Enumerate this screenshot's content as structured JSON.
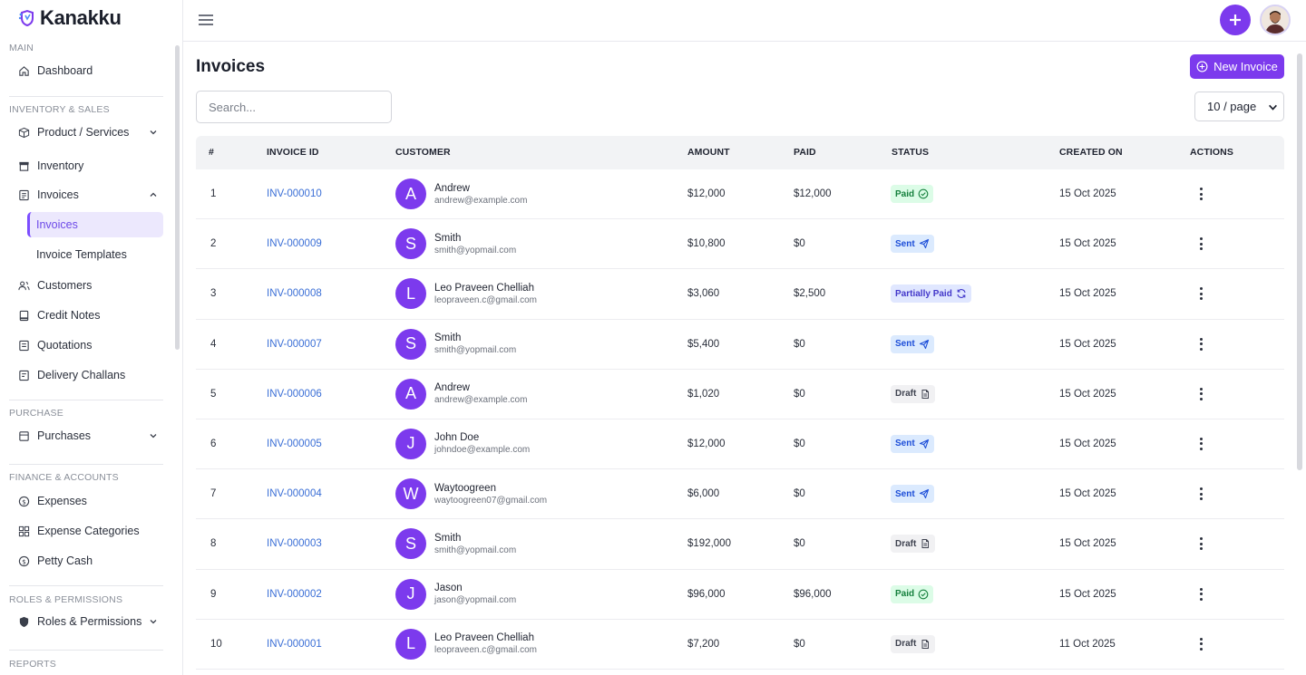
{
  "app": {
    "name": "Kanakku"
  },
  "sidebar": {
    "sections": {
      "main": "MAIN",
      "inventory_sales": "INVENTORY & SALES",
      "purchase": "PURCHASE",
      "finance": "FINANCE & ACCOUNTS",
      "roles": "ROLES & PERMISSIONS",
      "reports": "REPORTS"
    },
    "items": {
      "dashboard": "Dashboard",
      "products": "Product / Services",
      "inventory": "Inventory",
      "invoices": "Invoices",
      "invoices_sub": "Invoices",
      "invoice_templates": "Invoice Templates",
      "customers": "Customers",
      "credit_notes": "Credit Notes",
      "quotations": "Quotations",
      "delivery_challans": "Delivery Challans",
      "purchases": "Purchases",
      "expenses": "Expenses",
      "expense_categories": "Expense Categories",
      "petty_cash": "Petty Cash",
      "roles_permissions": "Roles & Permissions"
    }
  },
  "page": {
    "title": "Invoices",
    "new_button": "New Invoice",
    "search_placeholder": "Search...",
    "per_page": "10 / page"
  },
  "table": {
    "headers": {
      "num": "#",
      "invoice_id": "INVOICE ID",
      "customer": "CUSTOMER",
      "amount": "AMOUNT",
      "paid": "PAID",
      "status": "STATUS",
      "created_on": "CREATED ON",
      "actions": "ACTIONS"
    },
    "rows": [
      {
        "num": "1",
        "id": "INV-000010",
        "initial": "A",
        "name": "Andrew",
        "email": "andrew@example.com",
        "amount": "$12,000",
        "paid": "$12,000",
        "status": "Paid",
        "status_kind": "paid",
        "created": "15 Oct 2025"
      },
      {
        "num": "2",
        "id": "INV-000009",
        "initial": "S",
        "name": "Smith",
        "email": "smith@yopmail.com",
        "amount": "$10,800",
        "paid": "$0",
        "status": "Sent",
        "status_kind": "sent",
        "created": "15 Oct 2025"
      },
      {
        "num": "3",
        "id": "INV-000008",
        "initial": "L",
        "name": "Leo Praveen Chelliah",
        "email": "leopraveen.c@gmail.com",
        "amount": "$3,060",
        "paid": "$2,500",
        "status": "Partially Paid",
        "status_kind": "partial",
        "created": "15 Oct 2025"
      },
      {
        "num": "4",
        "id": "INV-000007",
        "initial": "S",
        "name": "Smith",
        "email": "smith@yopmail.com",
        "amount": "$5,400",
        "paid": "$0",
        "status": "Sent",
        "status_kind": "sent",
        "created": "15 Oct 2025"
      },
      {
        "num": "5",
        "id": "INV-000006",
        "initial": "A",
        "name": "Andrew",
        "email": "andrew@example.com",
        "amount": "$1,020",
        "paid": "$0",
        "status": "Draft",
        "status_kind": "draft",
        "created": "15 Oct 2025"
      },
      {
        "num": "6",
        "id": "INV-000005",
        "initial": "J",
        "name": "John Doe",
        "email": "johndoe@example.com",
        "amount": "$12,000",
        "paid": "$0",
        "status": "Sent",
        "status_kind": "sent",
        "created": "15 Oct 2025"
      },
      {
        "num": "7",
        "id": "INV-000004",
        "initial": "W",
        "name": "Waytoogreen",
        "email": "waytoogreen07@gmail.com",
        "amount": "$6,000",
        "paid": "$0",
        "status": "Sent",
        "status_kind": "sent",
        "created": "15 Oct 2025"
      },
      {
        "num": "8",
        "id": "INV-000003",
        "initial": "S",
        "name": "Smith",
        "email": "smith@yopmail.com",
        "amount": "$192,000",
        "paid": "$0",
        "status": "Draft",
        "status_kind": "draft",
        "created": "15 Oct 2025"
      },
      {
        "num": "9",
        "id": "INV-000002",
        "initial": "J",
        "name": "Jason",
        "email": "jason@yopmail.com",
        "amount": "$96,000",
        "paid": "$96,000",
        "status": "Paid",
        "status_kind": "paid",
        "created": "15 Oct 2025"
      },
      {
        "num": "10",
        "id": "INV-000001",
        "initial": "L",
        "name": "Leo Praveen Chelliah",
        "email": "leopraveen.c@gmail.com",
        "amount": "$7,200",
        "paid": "$0",
        "status": "Draft",
        "status_kind": "draft",
        "created": "11 Oct 2025"
      }
    ]
  },
  "colors": {
    "accent": "#7c3aed",
    "link": "#3b6fd6",
    "paid_bg": "#dcfce7",
    "paid_fg": "#15803d",
    "sent_bg": "#dbeafe",
    "sent_fg": "#1d4ed8",
    "partial_bg": "#e0e7ff",
    "partial_fg": "#4338ca",
    "draft_bg": "#f1f1f3",
    "draft_fg": "#3f4350"
  },
  "icons": {
    "paid": "check-circle-icon",
    "sent": "send-icon",
    "partial": "refresh-icon",
    "draft": "file-icon"
  }
}
